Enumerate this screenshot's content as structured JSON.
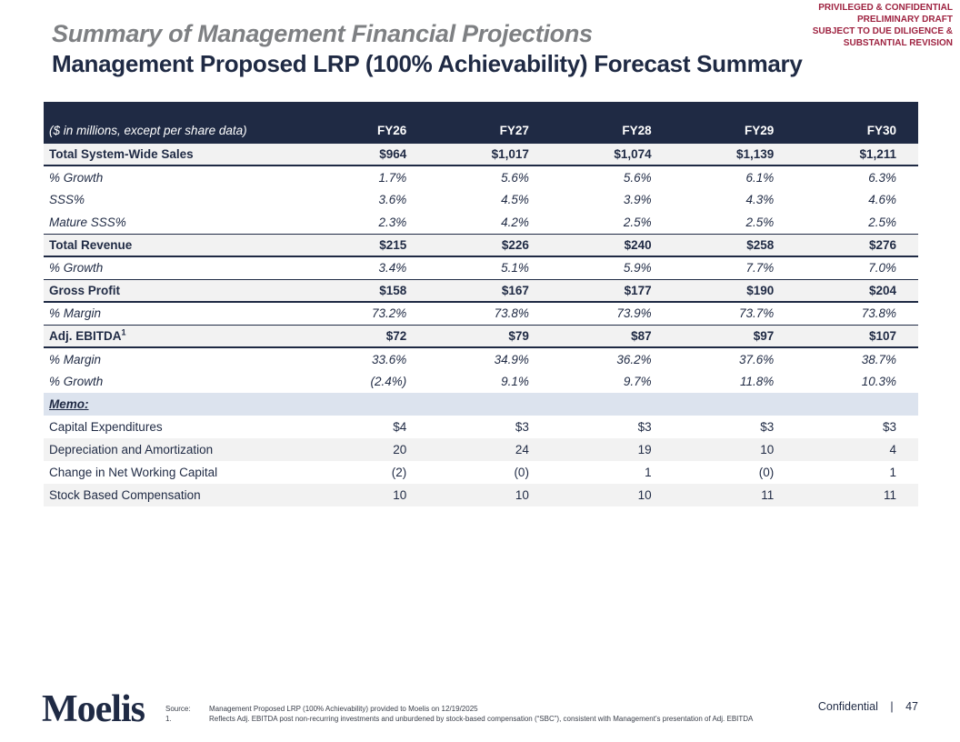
{
  "banner": {
    "lines": [
      "PRIVILEGED & CONFIDENTIAL",
      "PRELIMINARY DRAFT",
      "SUBJECT TO DUE DILIGENCE &",
      "SUBSTANTIAL REVISION"
    ],
    "color": "#9E2240"
  },
  "header": {
    "title_line1": "Summary of Management Financial Projections",
    "title_line2": "Management Proposed LRP (100% Achievability) Forecast Summary"
  },
  "table": {
    "unit_label": "($ in millions, except per share data)",
    "columns": [
      "FY26",
      "FY27",
      "FY28",
      "FY29",
      "FY30"
    ],
    "rows": [
      {
        "label": "Total System-Wide Sales",
        "style": "section",
        "values": [
          "$964",
          "$1,017",
          "$1,074",
          "$1,139",
          "$1,211"
        ]
      },
      {
        "label": "% Growth",
        "style": "sub-italic",
        "values": [
          "1.7%",
          "5.6%",
          "5.6%",
          "6.1%",
          "6.3%"
        ]
      },
      {
        "label": "SSS%",
        "style": "sub-italic",
        "values": [
          "3.6%",
          "4.5%",
          "3.9%",
          "4.3%",
          "4.6%"
        ]
      },
      {
        "label": "Mature SSS%",
        "style": "sub-italic",
        "values": [
          "2.3%",
          "4.2%",
          "2.5%",
          "2.5%",
          "2.5%"
        ]
      },
      {
        "label": "Total Revenue",
        "style": "section",
        "values": [
          "$215",
          "$226",
          "$240",
          "$258",
          "$276"
        ]
      },
      {
        "label": "% Growth",
        "style": "sub-italic",
        "values": [
          "3.4%",
          "5.1%",
          "5.9%",
          "7.7%",
          "7.0%"
        ]
      },
      {
        "label": "Gross Profit",
        "style": "section",
        "values": [
          "$158",
          "$167",
          "$177",
          "$190",
          "$204"
        ]
      },
      {
        "label": "% Margin",
        "style": "sub-italic",
        "values": [
          "73.2%",
          "73.8%",
          "73.9%",
          "73.7%",
          "73.8%"
        ]
      },
      {
        "label": "Adj. EBITDA",
        "label_sup": "1",
        "style": "section",
        "values": [
          "$72",
          "$79",
          "$87",
          "$97",
          "$107"
        ]
      },
      {
        "label": "% Margin",
        "style": "sub-italic",
        "values": [
          "33.6%",
          "34.9%",
          "36.2%",
          "37.6%",
          "38.7%"
        ]
      },
      {
        "label": "% Growth",
        "style": "sub-italic",
        "values": [
          "(2.4%)",
          "9.1%",
          "9.7%",
          "11.8%",
          "10.3%"
        ]
      },
      {
        "label": "Memo:",
        "style": "memo-header",
        "values": [
          "",
          "",
          "",
          "",
          ""
        ]
      },
      {
        "label": "Capital Expenditures",
        "style": "memo",
        "values": [
          "$4",
          "$3",
          "$3",
          "$3",
          "$3"
        ]
      },
      {
        "label": "Depreciation and Amortization",
        "style": "memo-stripe",
        "values": [
          "20",
          "24",
          "19",
          "10",
          "4"
        ]
      },
      {
        "label": "Change in Net Working Capital",
        "style": "memo",
        "values": [
          "(2)",
          "(0)",
          "1",
          "(0)",
          "1"
        ]
      },
      {
        "label": "Stock Based Compensation",
        "style": "memo-stripe",
        "values": [
          "10",
          "10",
          "10",
          "11",
          "11"
        ]
      }
    ]
  },
  "footer": {
    "logo_text": "Moelis",
    "source_label": "Source:",
    "source_text": "Management Proposed LRP (100% Achievability) provided to Moelis on 12/19/2025",
    "footnote_label": "1.",
    "footnote_text": "Reflects Adj. EBITDA post non-recurring investments and unburdened by stock-based compensation (“SBC”), consistent with Management’s presentation of Adj. EBITDA",
    "confidential_label": "Confidential",
    "separator": "|",
    "page_number": "47"
  },
  "colors": {
    "navy": "#1F2A44",
    "maroon": "#9E2240",
    "title_gray": "#7E8083",
    "row_stripe": "#F2F2F2",
    "memo_band": "#DCE3EE"
  }
}
